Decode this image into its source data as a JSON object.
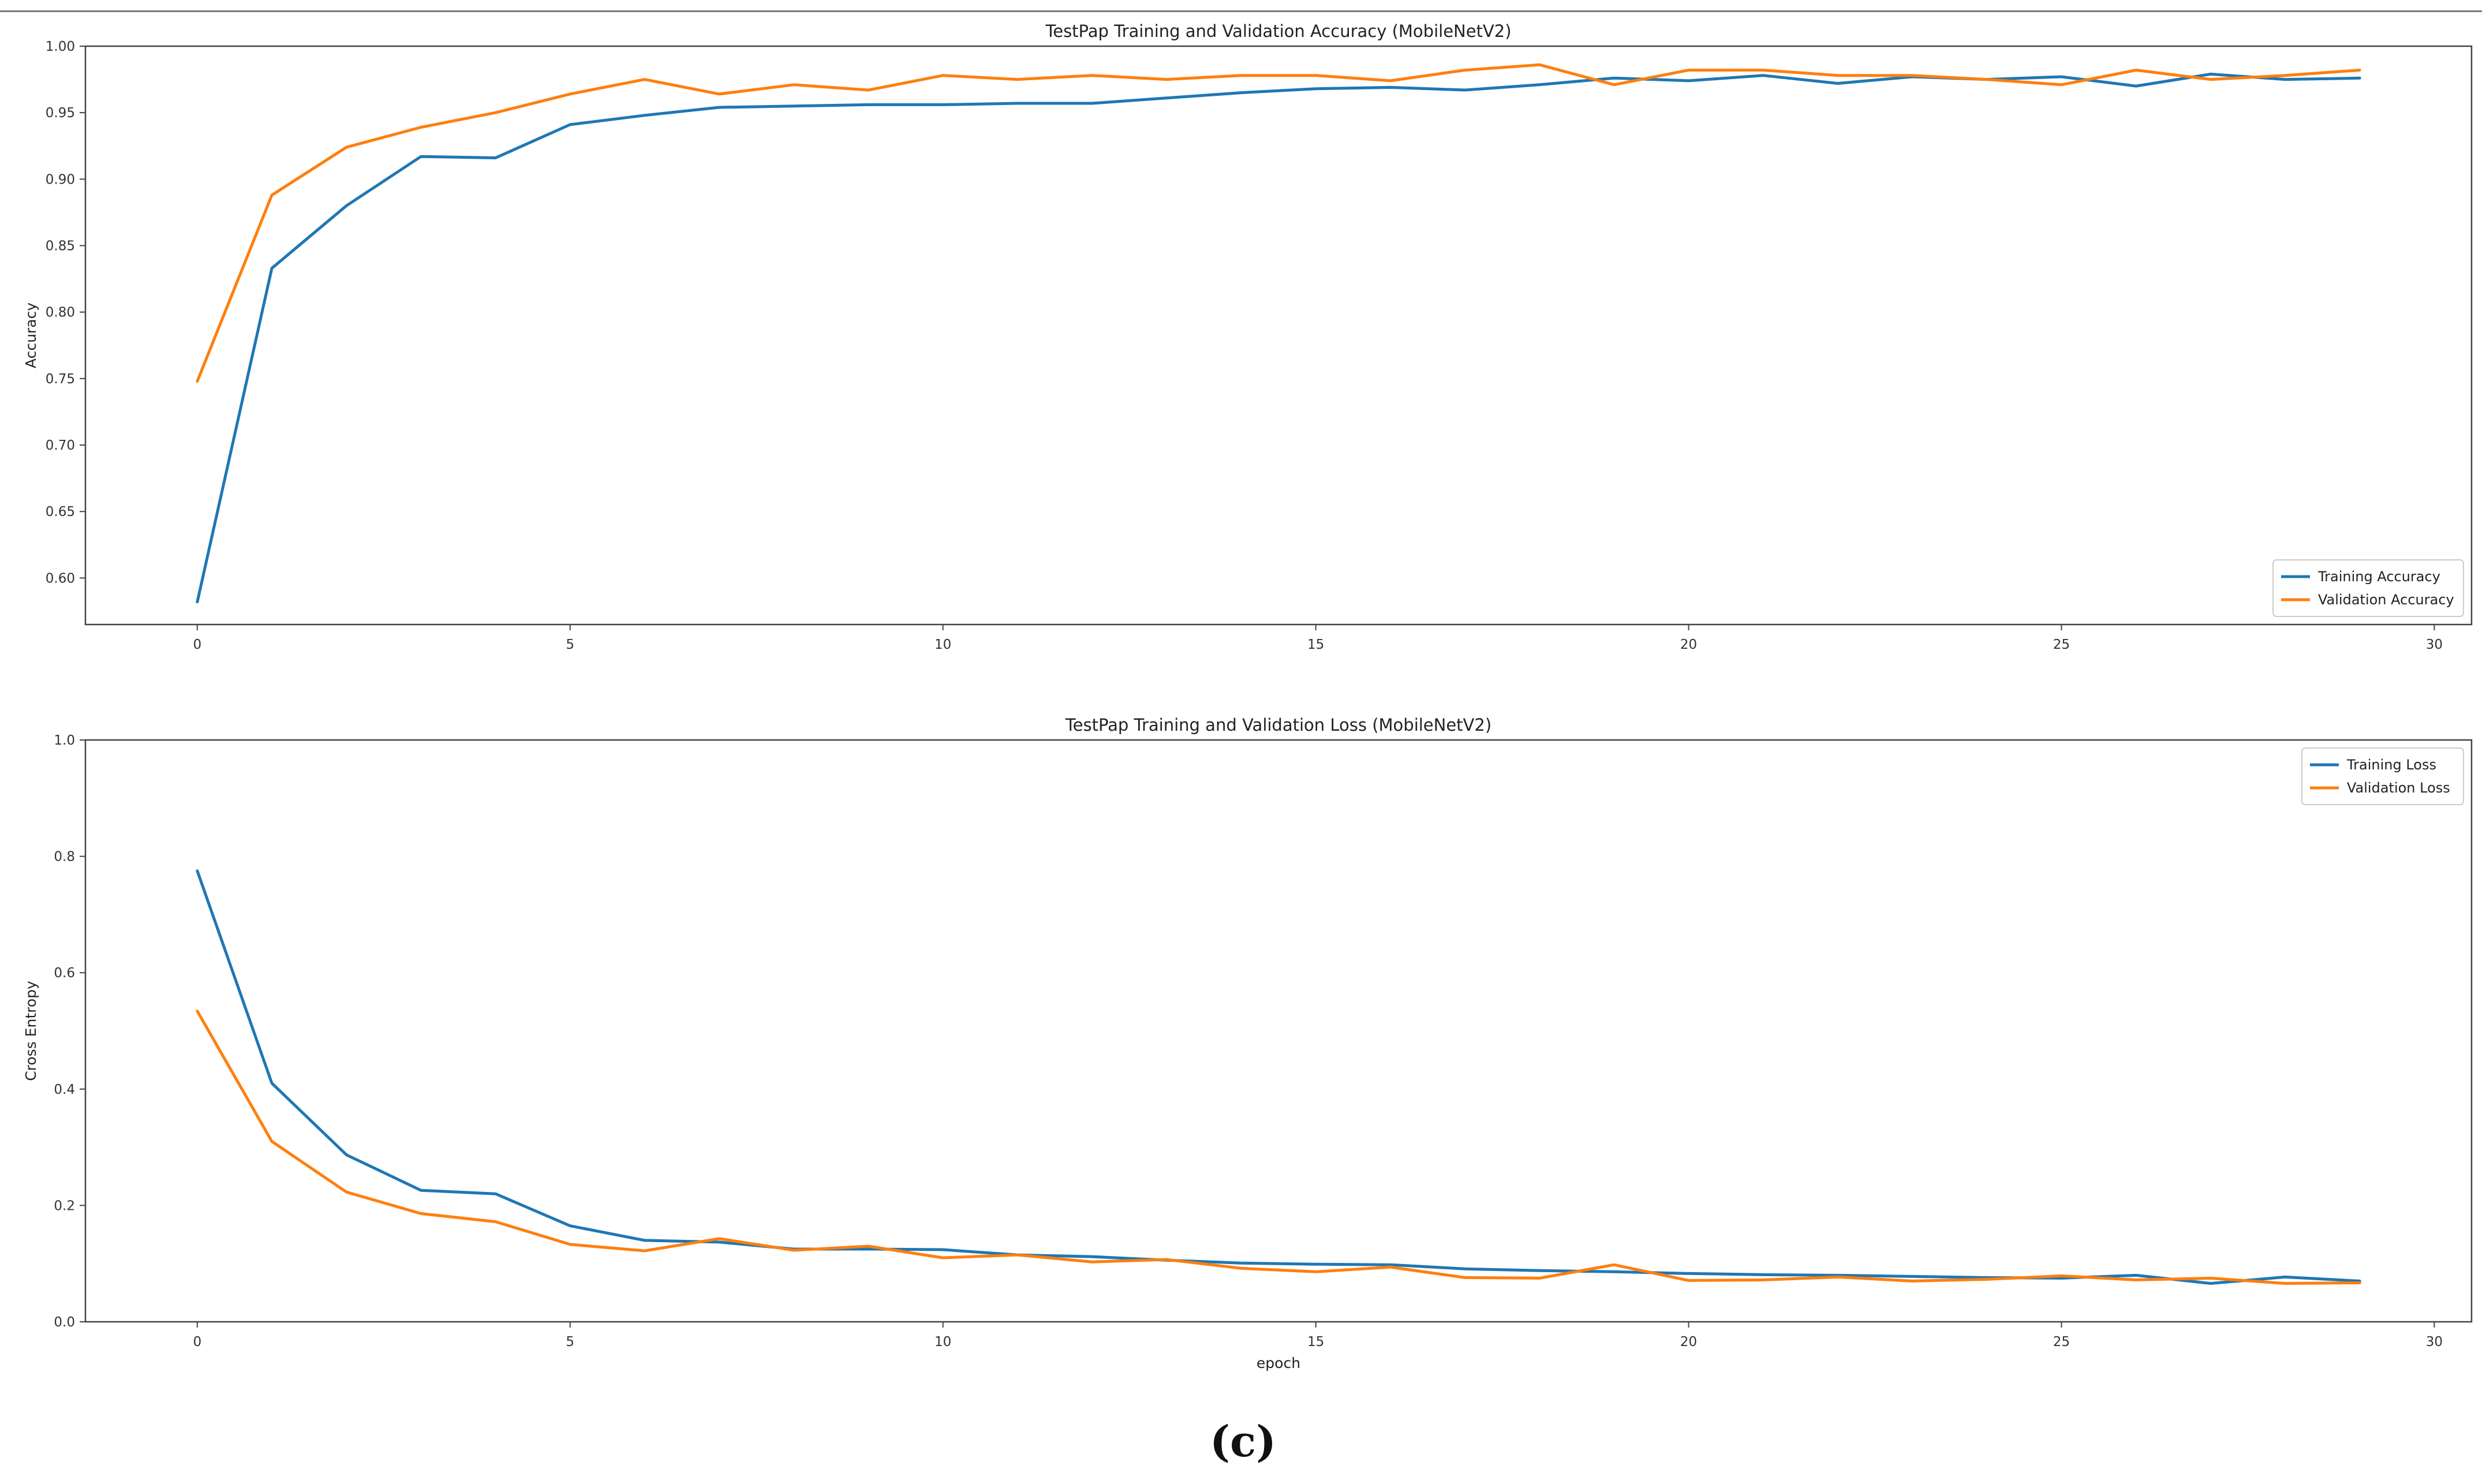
{
  "caption": "(c)",
  "chart_data": [
    {
      "type": "line",
      "title": "TestPap Training and Validation Accuracy (MobileNetV2)",
      "xlabel": "",
      "ylabel": "Accuracy",
      "xlim": [
        -1.5,
        30.5
      ],
      "ylim": [
        0.565,
        1.0
      ],
      "xticks": [
        0,
        5,
        10,
        15,
        20,
        25,
        30
      ],
      "xtick_labels": [
        "0",
        "5",
        "10",
        "15",
        "20",
        "25",
        "30"
      ],
      "yticks": [
        0.6,
        0.65,
        0.7,
        0.75,
        0.8,
        0.85,
        0.9,
        0.95,
        1.0
      ],
      "ytick_labels": [
        "0.60",
        "0.65",
        "0.70",
        "0.75",
        "0.80",
        "0.85",
        "0.90",
        "0.95",
        "1.00"
      ],
      "grid": false,
      "legend_position": "lower-right",
      "x": [
        0,
        1,
        2,
        3,
        4,
        5,
        6,
        7,
        8,
        9,
        10,
        11,
        12,
        13,
        14,
        15,
        16,
        17,
        18,
        19,
        20,
        21,
        22,
        23,
        24,
        25,
        26,
        27,
        28,
        29
      ],
      "series": [
        {
          "name": "Training Accuracy",
          "color": "#1f77b4",
          "values": [
            0.582,
            0.833,
            0.88,
            0.917,
            0.916,
            0.941,
            0.948,
            0.954,
            0.955,
            0.956,
            0.956,
            0.957,
            0.957,
            0.961,
            0.965,
            0.968,
            0.969,
            0.967,
            0.971,
            0.976,
            0.974,
            0.978,
            0.972,
            0.977,
            0.975,
            0.977,
            0.97,
            0.979,
            0.975,
            0.976
          ]
        },
        {
          "name": "Validation Accuracy",
          "color": "#ff7f0e",
          "values": [
            0.748,
            0.888,
            0.924,
            0.939,
            0.95,
            0.964,
            0.975,
            0.964,
            0.971,
            0.967,
            0.978,
            0.975,
            0.978,
            0.975,
            0.978,
            0.978,
            0.974,
            0.982,
            0.986,
            0.971,
            0.982,
            0.982,
            0.978,
            0.978,
            0.975,
            0.971,
            0.982,
            0.975,
            0.978,
            0.982
          ]
        }
      ]
    },
    {
      "type": "line",
      "title": "TestPap Training and Validation Loss (MobileNetV2)",
      "xlabel": "epoch",
      "ylabel": "Cross Entropy",
      "xlim": [
        -1.5,
        30.5
      ],
      "ylim": [
        0.0,
        1.0
      ],
      "xticks": [
        0,
        5,
        10,
        15,
        20,
        25,
        30
      ],
      "xtick_labels": [
        "0",
        "5",
        "10",
        "15",
        "20",
        "25",
        "30"
      ],
      "yticks": [
        0.0,
        0.2,
        0.4,
        0.6,
        0.8,
        1.0
      ],
      "ytick_labels": [
        "0.0",
        "0.2",
        "0.4",
        "0.6",
        "0.8",
        "1.0"
      ],
      "grid": false,
      "legend_position": "upper-right",
      "x": [
        0,
        1,
        2,
        3,
        4,
        5,
        6,
        7,
        8,
        9,
        10,
        11,
        12,
        13,
        14,
        15,
        16,
        17,
        18,
        19,
        20,
        21,
        22,
        23,
        24,
        25,
        26,
        27,
        28,
        29
      ],
      "series": [
        {
          "name": "Training Loss",
          "color": "#1f77b4",
          "values": [
            0.775,
            0.41,
            0.287,
            0.226,
            0.22,
            0.165,
            0.14,
            0.137,
            0.125,
            0.125,
            0.124,
            0.115,
            0.112,
            0.106,
            0.101,
            0.099,
            0.098,
            0.091,
            0.088,
            0.086,
            0.083,
            0.081,
            0.08,
            0.078,
            0.076,
            0.075,
            0.08,
            0.066,
            0.077,
            0.07
          ]
        },
        {
          "name": "Validation Loss",
          "color": "#ff7f0e",
          "values": [
            0.534,
            0.31,
            0.223,
            0.186,
            0.172,
            0.133,
            0.122,
            0.143,
            0.123,
            0.13,
            0.11,
            0.115,
            0.103,
            0.107,
            0.092,
            0.086,
            0.094,
            0.076,
            0.075,
            0.098,
            0.071,
            0.072,
            0.077,
            0.07,
            0.073,
            0.079,
            0.072,
            0.075,
            0.066,
            0.067
          ]
        }
      ]
    }
  ]
}
